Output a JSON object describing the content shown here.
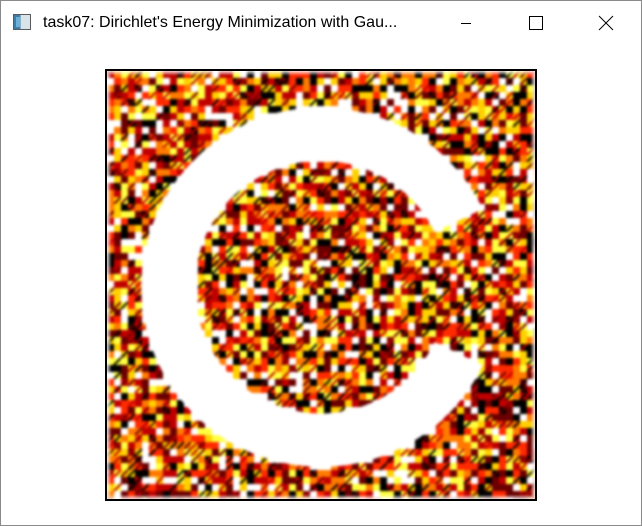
{
  "window": {
    "title": "task07: Dirichlet's Energy Minimization with Gau...",
    "icon": "app-window-icon",
    "controls": {
      "minimize": "minimize-icon",
      "maximize": "maximize-icon",
      "close": "close-icon"
    }
  },
  "viewport": {
    "background": "#ffffff",
    "colors": [
      "#000000",
      "#6b0000",
      "#c00000",
      "#ff2a00",
      "#ff7a00",
      "#ffd000",
      "#ffff40"
    ]
  }
}
